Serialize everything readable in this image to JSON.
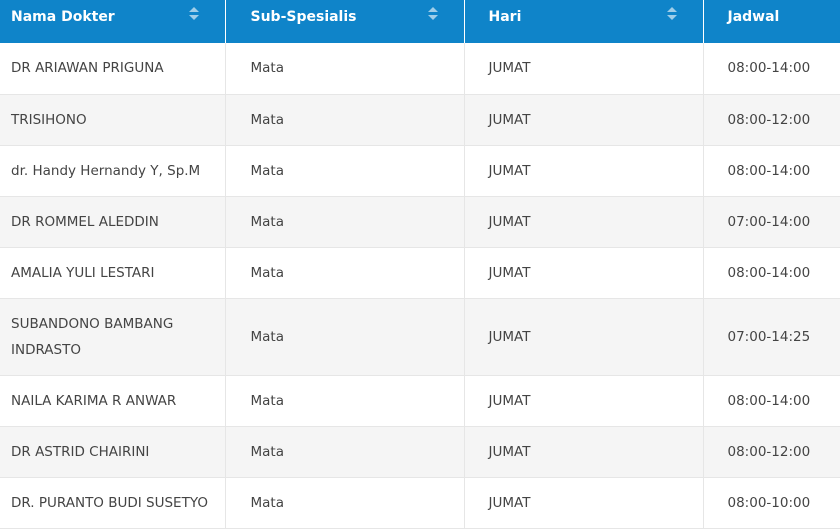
{
  "table": {
    "headers": [
      {
        "label": "Nama Dokter",
        "sortable": true
      },
      {
        "label": "Sub-Spesialis",
        "sortable": true
      },
      {
        "label": "Hari",
        "sortable": true
      },
      {
        "label": "Jadwal",
        "sortable": false
      }
    ],
    "rows": [
      {
        "name": "DR ARIAWAN PRIGUNA",
        "spec": "Mata",
        "day": "JUMAT",
        "time": "08:00-14:00"
      },
      {
        "name": "TRISIHONO",
        "spec": "Mata",
        "day": "JUMAT",
        "time": "08:00-12:00"
      },
      {
        "name": "dr. Handy Hernandy Y, Sp.M",
        "spec": "Mata",
        "day": "JUMAT",
        "time": "08:00-14:00"
      },
      {
        "name": "DR ROMMEL ALEDDIN",
        "spec": "Mata",
        "day": "JUMAT",
        "time": "07:00-14:00"
      },
      {
        "name": "AMALIA YULI LESTARI",
        "spec": "Mata",
        "day": "JUMAT",
        "time": "08:00-14:00"
      },
      {
        "name": "SUBANDONO BAMBANG INDRASTO",
        "spec": "Mata",
        "day": "JUMAT",
        "time": "07:00-14:25"
      },
      {
        "name": "NAILA KARIMA R ANWAR",
        "spec": "Mata",
        "day": "JUMAT",
        "time": "08:00-14:00"
      },
      {
        "name": "DR ASTRID CHAIRINI",
        "spec": "Mata",
        "day": "JUMAT",
        "time": "08:00-12:00"
      },
      {
        "name": "DR. PURANTO BUDI SUSETYO",
        "spec": "Mata",
        "day": "JUMAT",
        "time": "08:00-10:00"
      }
    ]
  },
  "colors": {
    "header_bg": "#0f84c9",
    "header_text": "#ffffff",
    "row_alt_bg": "#f5f5f5",
    "cell_text": "#444444"
  },
  "icons": {
    "sort": "sort-icon"
  }
}
